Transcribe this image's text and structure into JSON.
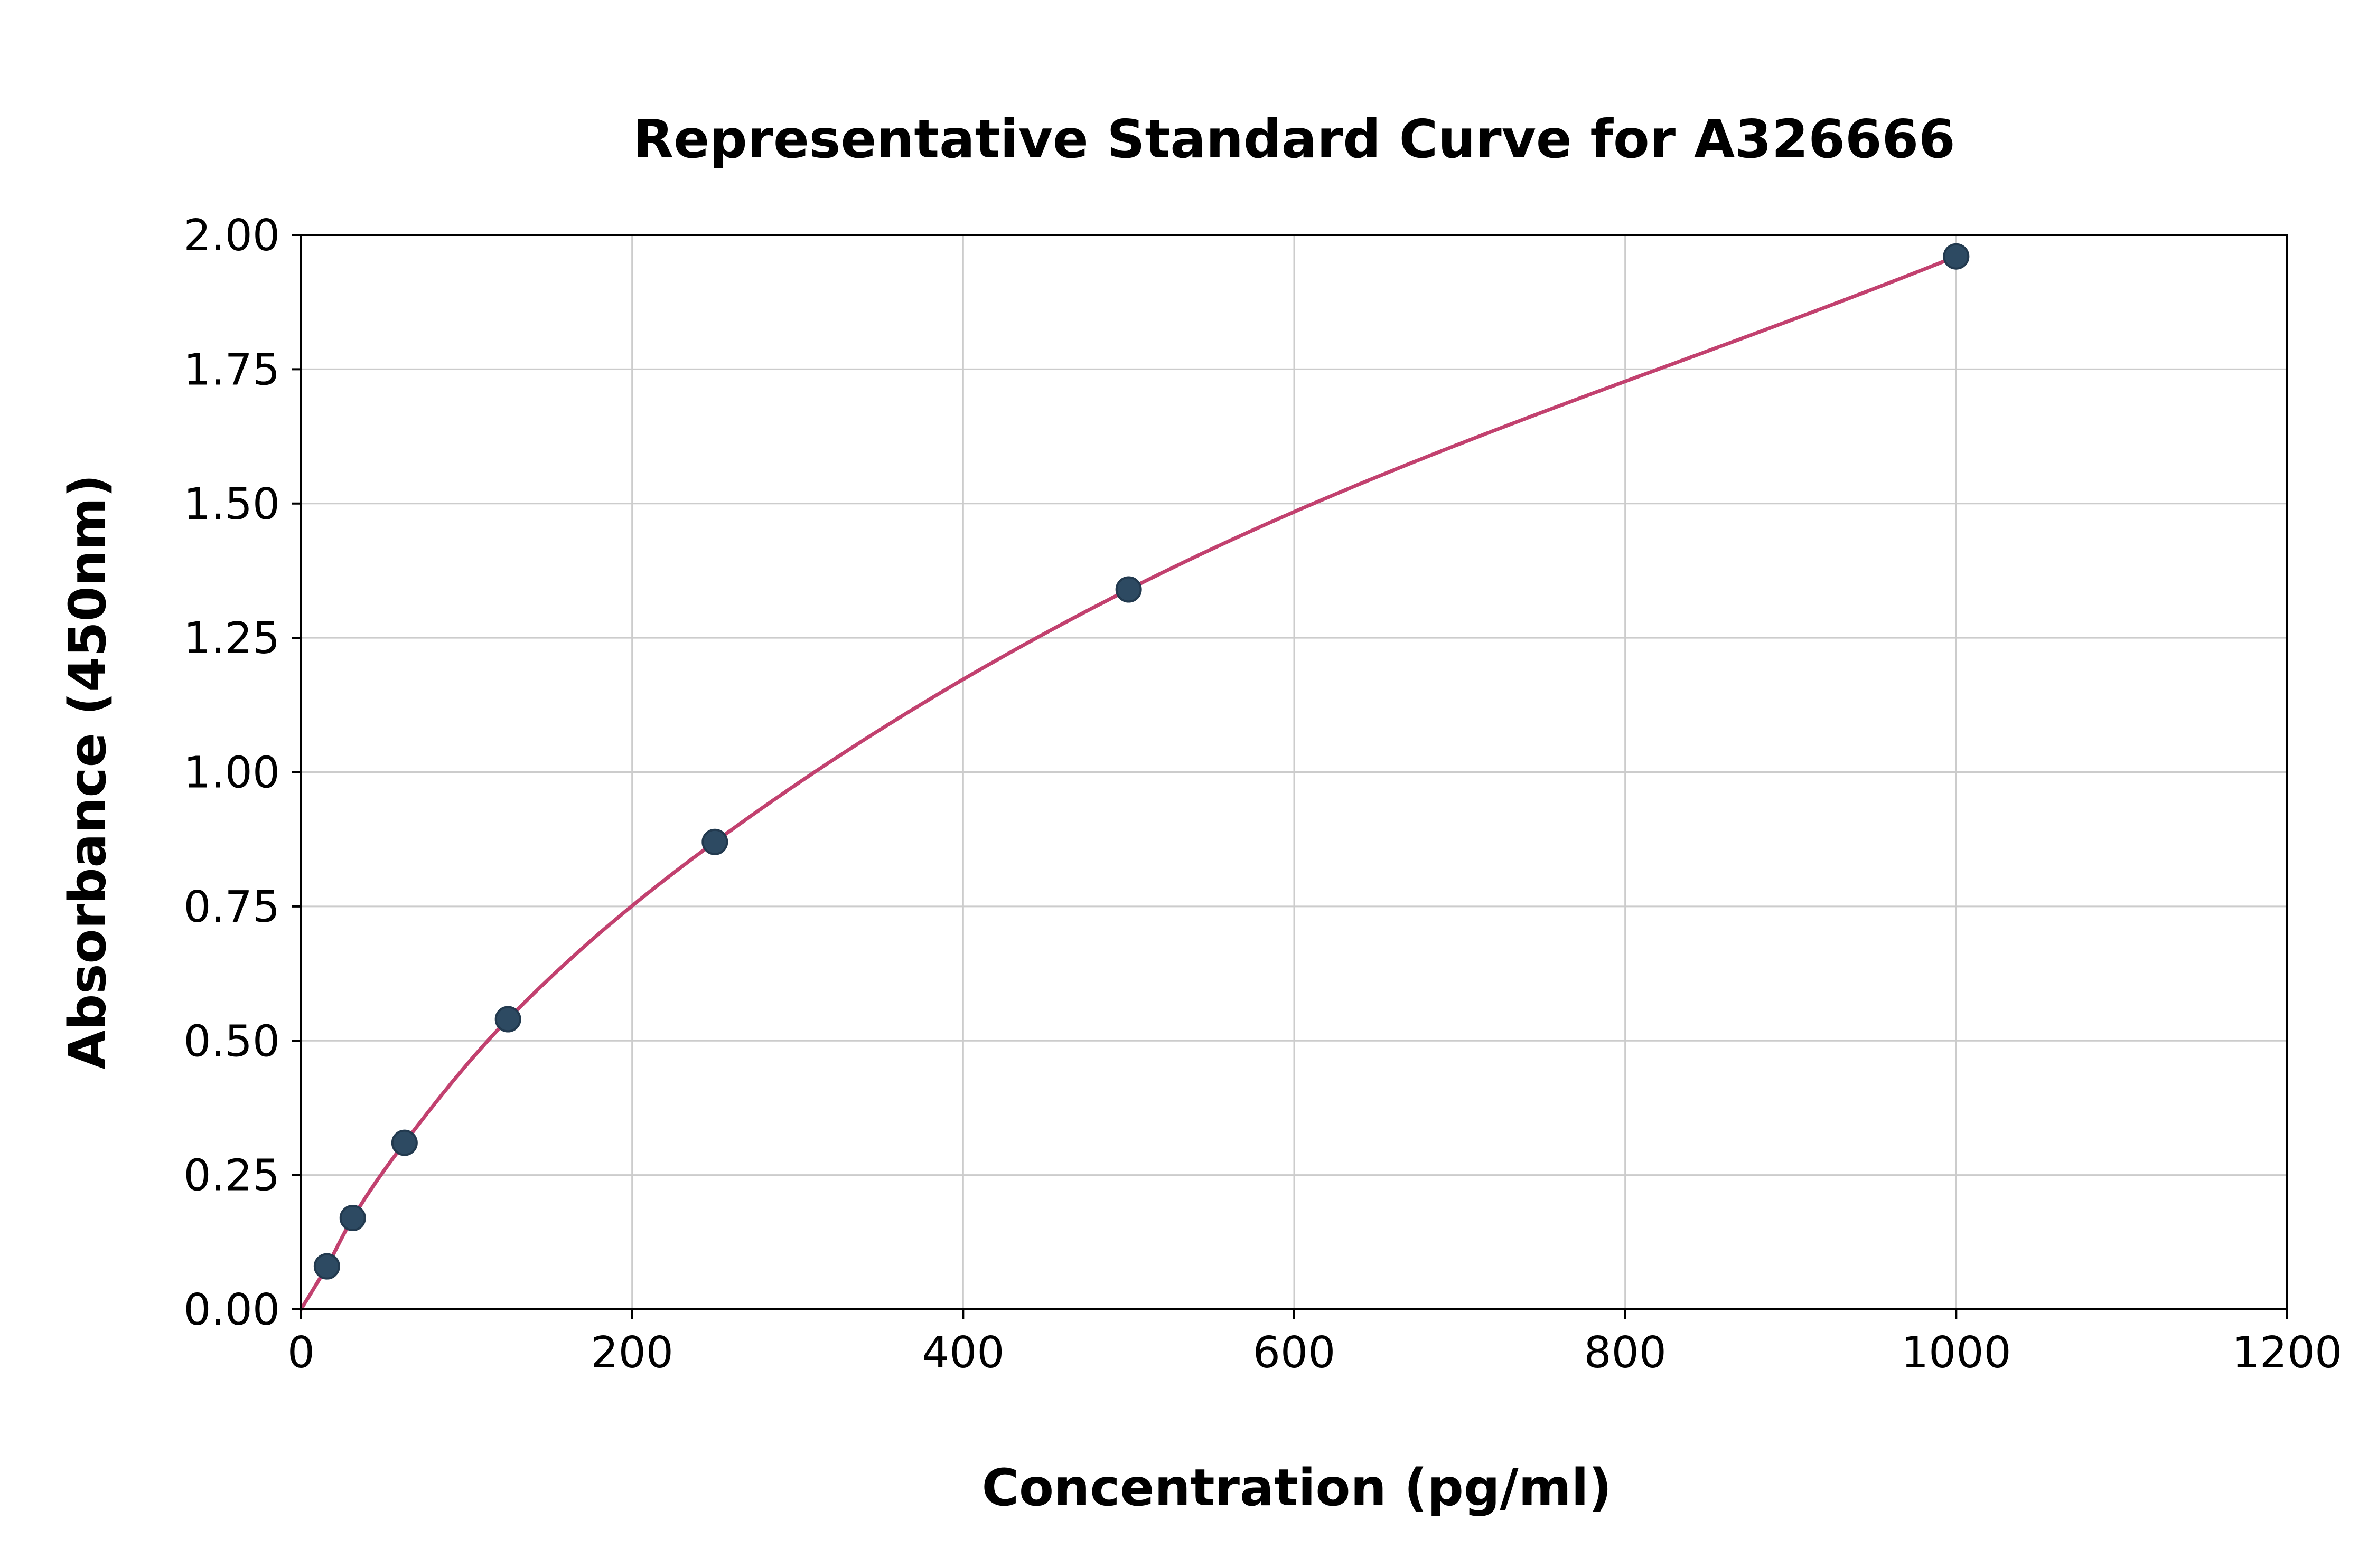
{
  "figure": {
    "background": "#ffffff"
  },
  "chart_data": {
    "type": "scatter",
    "title": "Representative Standard Curve for A326666",
    "xlabel": "Concentration (pg/ml)",
    "ylabel": "Absorbance (450nm)",
    "xlim": [
      0,
      1200
    ],
    "ylim": [
      0,
      2.0
    ],
    "grid": true,
    "legend": "none",
    "x_ticks": [
      0,
      200,
      400,
      600,
      800,
      1000,
      1200
    ],
    "x_tick_labels": [
      "0",
      "200",
      "400",
      "600",
      "800",
      "1000",
      "1200"
    ],
    "y_ticks": [
      0.0,
      0.25,
      0.5,
      0.75,
      1.0,
      1.25,
      1.5,
      1.75,
      2.0
    ],
    "y_tick_labels": [
      "0.00",
      "0.25",
      "0.50",
      "0.75",
      "1.00",
      "1.25",
      "1.50",
      "1.75",
      "2.00"
    ],
    "points": [
      {
        "x": 15.6,
        "y": 0.08
      },
      {
        "x": 31.2,
        "y": 0.17
      },
      {
        "x": 62.5,
        "y": 0.31
      },
      {
        "x": 125,
        "y": 0.54
      },
      {
        "x": 250,
        "y": 0.87
      },
      {
        "x": 500,
        "y": 1.34
      },
      {
        "x": 1000,
        "y": 1.96
      }
    ],
    "curve_anchor": {
      "x": 0,
      "y": 0.0
    },
    "colors": {
      "curve": "#c2416f",
      "point_fill": "#2d4a62",
      "point_edge": "#223a4f",
      "grid": "#cccccc",
      "axis": "#000000"
    }
  }
}
